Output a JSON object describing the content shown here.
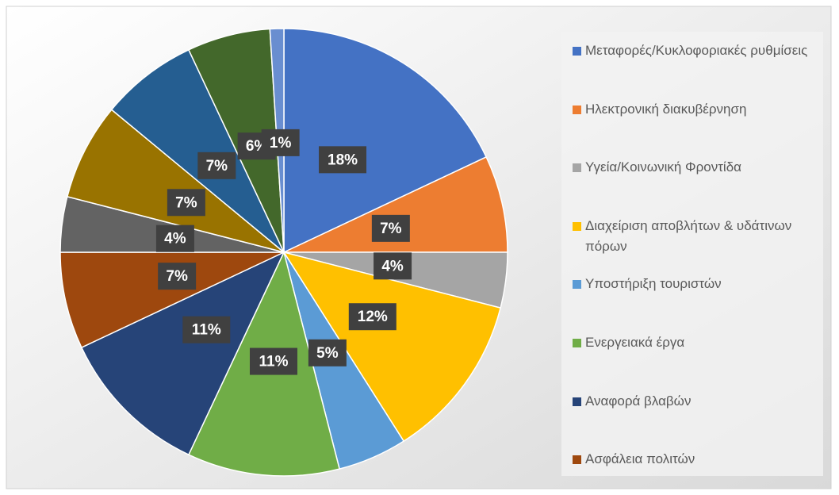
{
  "chart_data": {
    "type": "pie",
    "categories": [
      "Μεταφορές/Κυκλοφοριακές ρυθμίσεις",
      "Ηλεκτρονική διακυβέρνηση",
      "Υγεία/Κοινωνική Φροντίδα",
      "Διαχείριση αποβλήτων & υδάτινων πόρων",
      "Υποστήριξη τουριστών",
      "Ενεργειακά έργα",
      "Αναφορά βλαβών",
      "Ασφάλεια πολιτών",
      null,
      null,
      null,
      null,
      null
    ],
    "values": [
      18,
      7,
      4,
      12,
      5,
      11,
      11,
      7,
      4,
      7,
      7,
      6,
      1
    ],
    "value_labels": [
      "18%",
      "7%",
      "4%",
      "12%",
      "5%",
      "11%",
      "11%",
      "7%",
      "4%",
      "7%",
      "7%",
      "6%",
      "1%"
    ],
    "colors": [
      "#4472c4",
      "#ed7d31",
      "#a5a5a5",
      "#ffc000",
      "#5b9bd5",
      "#70ad47",
      "#264478",
      "#9e480e",
      "#636363",
      "#997300",
      "#255e91",
      "#43682b",
      "#698ed0"
    ]
  }
}
